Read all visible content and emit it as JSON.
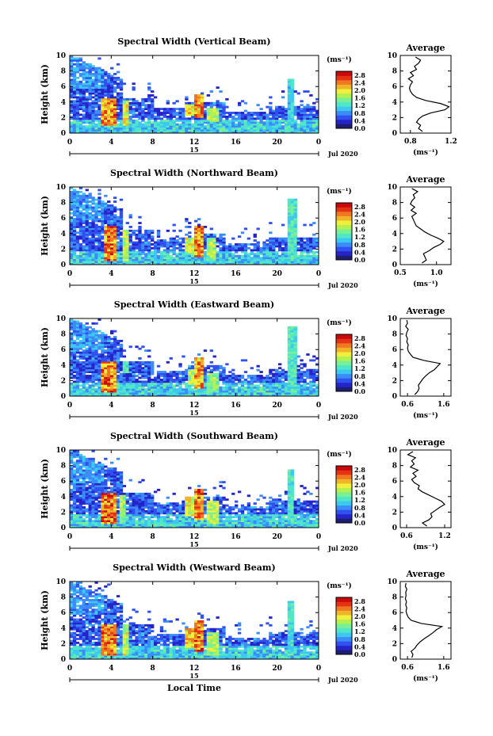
{
  "figure": {
    "x_label": "Local Time",
    "date_label": "Jul 2020",
    "day_label": "15",
    "colorbar_unit": "(ms⁻¹)",
    "colorbar_ticks": [
      "0.0",
      "0.4",
      "0.8",
      "1.2",
      "1.6",
      "2.0",
      "2.4",
      "2.8"
    ],
    "colorbar_range": [
      0,
      3.0
    ],
    "colormap": [
      "#1e1e6e",
      "#2424c8",
      "#3050f0",
      "#3c8cf8",
      "#3cc8f0",
      "#50e6c8",
      "#78f096",
      "#b4f050",
      "#f0f03c",
      "#f0b428",
      "#f07820",
      "#e63214",
      "#c80a0a"
    ]
  },
  "chart_data": [
    {
      "type": "heatmap",
      "title": "Spectral Width (Vertical Beam)",
      "ylabel": "Height (km)",
      "xlabel": "",
      "x_ticks": [
        "0",
        "4",
        "8",
        "12",
        "16",
        "20",
        "0"
      ],
      "y_ticks": [
        "0",
        "2",
        "4",
        "6",
        "8",
        "10"
      ],
      "xlim": [
        0,
        24
      ],
      "ylim": [
        0,
        10
      ],
      "high_regions": [
        {
          "t": [
            2.8,
            4.2
          ],
          "h": [
            1.0,
            4.5
          ],
          "v": 2.7
        },
        {
          "t": [
            4.8,
            5.4
          ],
          "h": [
            1.0,
            4.2
          ],
          "v": 2.1
        },
        {
          "t": [
            11.0,
            12.0
          ],
          "h": [
            2.2,
            3.6
          ],
          "v": 2.3
        },
        {
          "t": [
            12.0,
            12.8
          ],
          "h": [
            2.0,
            5.0
          ],
          "v": 2.6
        },
        {
          "t": [
            13.2,
            14.2
          ],
          "h": [
            1.5,
            3.2
          ],
          "v": 1.9
        },
        {
          "t": [
            21.0,
            21.6
          ],
          "h": [
            1.0,
            7.0
          ],
          "v": 1.3
        }
      ],
      "profile": {
        "title": "Average",
        "ylabel": "Height (km)",
        "xlabel": "(ms⁻¹)",
        "x_ticks": [
          "0.8",
          "1.2"
        ],
        "xlim": [
          0.7,
          1.2
        ],
        "x_tick_values": [
          0.8,
          1.2
        ],
        "heights": [
          0.2,
          0.6,
          1.0,
          1.4,
          1.8,
          2.2,
          2.6,
          3.0,
          3.4,
          3.8,
          4.2,
          4.6,
          5.0,
          5.4,
          5.8,
          6.2,
          6.6,
          7.0,
          7.4,
          7.8,
          8.2,
          8.6,
          9.0,
          9.4,
          9.8
        ],
        "values": [
          0.92,
          0.88,
          0.9,
          0.86,
          0.88,
          0.92,
          1.0,
          1.14,
          1.18,
          1.1,
          0.95,
          0.86,
          0.82,
          0.8,
          0.79,
          0.8,
          0.82,
          0.78,
          0.83,
          0.8,
          0.86,
          0.84,
          0.88,
          0.9,
          0.85
        ]
      }
    },
    {
      "type": "heatmap",
      "title": "Spectral Width (Northward Beam)",
      "ylabel": "Height (km)",
      "xlabel": "",
      "x_ticks": [
        "0",
        "4",
        "8",
        "12",
        "16",
        "20",
        "0"
      ],
      "y_ticks": [
        "0",
        "2",
        "4",
        "6",
        "8",
        "10"
      ],
      "xlim": [
        0,
        24
      ],
      "ylim": [
        0,
        10
      ],
      "high_regions": [
        {
          "t": [
            3.0,
            4.2
          ],
          "h": [
            0.5,
            5.0
          ],
          "v": 2.7
        },
        {
          "t": [
            4.8,
            5.6
          ],
          "h": [
            0.5,
            4.5
          ],
          "v": 2.0
        },
        {
          "t": [
            11.0,
            11.8
          ],
          "h": [
            1.5,
            3.5
          ],
          "v": 2.2
        },
        {
          "t": [
            12.0,
            12.8
          ],
          "h": [
            1.0,
            5.0
          ],
          "v": 2.7
        },
        {
          "t": [
            13.0,
            14.0
          ],
          "h": [
            0.5,
            3.5
          ],
          "v": 1.9
        },
        {
          "t": [
            21.0,
            21.8
          ],
          "h": [
            0.5,
            8.5
          ],
          "v": 1.5
        }
      ],
      "profile": {
        "title": "Average",
        "ylabel": "Height (km)",
        "xlabel": "(ms⁻¹)",
        "x_ticks": [
          "0.5",
          "1.0"
        ],
        "xlim": [
          0.5,
          1.2
        ],
        "x_tick_values": [
          0.5,
          1.0
        ],
        "heights": [
          0.2,
          0.6,
          1.0,
          1.4,
          1.8,
          2.2,
          2.6,
          3.0,
          3.4,
          3.8,
          4.2,
          4.6,
          5.0,
          5.4,
          5.8,
          6.2,
          6.6,
          7.0,
          7.4,
          7.8,
          8.2,
          8.6,
          9.0,
          9.4,
          9.8
        ],
        "values": [
          0.8,
          0.86,
          0.84,
          0.82,
          0.9,
          0.96,
          1.05,
          1.1,
          1.02,
          0.92,
          0.84,
          0.78,
          0.72,
          0.7,
          0.68,
          0.66,
          0.72,
          0.65,
          0.7,
          0.64,
          0.66,
          0.7,
          0.68,
          0.74,
          0.66
        ]
      }
    },
    {
      "type": "heatmap",
      "title": "Spectral Width (Eastward Beam)",
      "ylabel": "Height (km)",
      "xlabel": "",
      "x_ticks": [
        "0",
        "4",
        "8",
        "12",
        "16",
        "20",
        "0"
      ],
      "y_ticks": [
        "0",
        "2",
        "4",
        "6",
        "8",
        "10"
      ],
      "xlim": [
        0,
        24
      ],
      "ylim": [
        0,
        10
      ],
      "high_regions": [
        {
          "t": [
            2.8,
            4.2
          ],
          "h": [
            0.5,
            4.5
          ],
          "v": 2.7
        },
        {
          "t": [
            4.8,
            5.4
          ],
          "h": [
            3.0,
            4.5
          ],
          "v": 1.6
        },
        {
          "t": [
            11.2,
            12.0
          ],
          "h": [
            1.5,
            3.5
          ],
          "v": 2.0
        },
        {
          "t": [
            12.0,
            12.8
          ],
          "h": [
            1.0,
            5.0
          ],
          "v": 2.6
        },
        {
          "t": [
            13.2,
            14.2
          ],
          "h": [
            0.5,
            3.0
          ],
          "v": 1.8
        },
        {
          "t": [
            21.0,
            21.8
          ],
          "h": [
            0.5,
            9.0
          ],
          "v": 1.5
        }
      ],
      "profile": {
        "title": "Average",
        "ylabel": "Height (km)",
        "xlabel": "(ms⁻¹)",
        "x_ticks": [
          "0.6",
          "1.6"
        ],
        "xlim": [
          0.4,
          1.8
        ],
        "x_tick_values": [
          0.6,
          1.6
        ],
        "heights": [
          0.2,
          0.6,
          1.0,
          1.4,
          1.8,
          2.2,
          2.6,
          3.0,
          3.4,
          3.8,
          4.2,
          4.6,
          5.0,
          5.4,
          5.8,
          6.2,
          6.6,
          7.0,
          7.4,
          7.8,
          8.2,
          8.6,
          9.0,
          9.4,
          9.8
        ],
        "values": [
          0.8,
          0.88,
          0.92,
          0.9,
          0.96,
          1.02,
          1.1,
          1.2,
          1.34,
          1.42,
          1.5,
          1.05,
          0.75,
          0.68,
          0.62,
          0.6,
          0.62,
          0.58,
          0.6,
          0.56,
          0.58,
          0.62,
          0.55,
          0.6,
          0.58
        ]
      }
    },
    {
      "type": "heatmap",
      "title": "Spectral Width (Southward Beam)",
      "ylabel": "Height (km)",
      "xlabel": "",
      "x_ticks": [
        "0",
        "4",
        "8",
        "12",
        "16",
        "20",
        "0"
      ],
      "y_ticks": [
        "0",
        "2",
        "4",
        "6",
        "8",
        "10"
      ],
      "xlim": [
        0,
        24
      ],
      "ylim": [
        0,
        10
      ],
      "high_regions": [
        {
          "t": [
            2.8,
            4.4
          ],
          "h": [
            0.5,
            4.5
          ],
          "v": 2.8
        },
        {
          "t": [
            4.6,
            5.2
          ],
          "h": [
            0.5,
            4.2
          ],
          "v": 1.9
        },
        {
          "t": [
            11.0,
            11.8
          ],
          "h": [
            1.5,
            3.8
          ],
          "v": 2.2
        },
        {
          "t": [
            12.0,
            12.8
          ],
          "h": [
            1.0,
            5.0
          ],
          "v": 2.7
        },
        {
          "t": [
            13.2,
            14.2
          ],
          "h": [
            0.5,
            3.5
          ],
          "v": 2.0
        },
        {
          "t": [
            21.0,
            21.6
          ],
          "h": [
            0.5,
            7.5
          ],
          "v": 1.4
        }
      ],
      "profile": {
        "title": "Average",
        "ylabel": "Height (km)",
        "xlabel": "(ms⁻¹)",
        "x_ticks": [
          "0.6",
          "1.2"
        ],
        "xlim": [
          0.5,
          1.3
        ],
        "x_tick_values": [
          0.6,
          1.2
        ],
        "heights": [
          0.2,
          0.6,
          1.0,
          1.4,
          1.8,
          2.2,
          2.6,
          3.0,
          3.4,
          3.8,
          4.2,
          4.6,
          5.0,
          5.4,
          5.8,
          6.2,
          6.6,
          7.0,
          7.4,
          7.8,
          8.2,
          8.6,
          9.0,
          9.4,
          9.8
        ],
        "values": [
          0.92,
          0.85,
          0.95,
          1.0,
          0.98,
          1.05,
          1.12,
          1.2,
          1.15,
          1.05,
          0.95,
          0.85,
          0.78,
          0.8,
          0.72,
          0.68,
          0.75,
          0.7,
          0.78,
          0.66,
          0.72,
          0.68,
          0.74,
          0.62,
          0.7
        ]
      }
    },
    {
      "type": "heatmap",
      "title": "Spectral Width (Westward Beam)",
      "ylabel": "Height (km)",
      "xlabel": "Local Time",
      "x_ticks": [
        "0",
        "4",
        "8",
        "12",
        "16",
        "20",
        "0"
      ],
      "y_ticks": [
        "0",
        "2",
        "4",
        "6",
        "8",
        "10"
      ],
      "xlim": [
        0,
        24
      ],
      "ylim": [
        0,
        10
      ],
      "high_regions": [
        {
          "t": [
            2.8,
            4.2
          ],
          "h": [
            0.5,
            4.5
          ],
          "v": 2.7
        },
        {
          "t": [
            4.8,
            5.6
          ],
          "h": [
            0.5,
            4.5
          ],
          "v": 2.0
        },
        {
          "t": [
            11.0,
            11.8
          ],
          "h": [
            1.5,
            3.8
          ],
          "v": 2.4
        },
        {
          "t": [
            12.0,
            12.8
          ],
          "h": [
            1.0,
            5.0
          ],
          "v": 2.7
        },
        {
          "t": [
            13.2,
            14.2
          ],
          "h": [
            0.5,
            3.5
          ],
          "v": 1.9
        },
        {
          "t": [
            21.0,
            21.6
          ],
          "h": [
            0.5,
            7.5
          ],
          "v": 1.4
        }
      ],
      "profile": {
        "title": "Average",
        "ylabel": "Height (km)",
        "xlabel": "(ms⁻¹)",
        "x_ticks": [
          "0.6",
          "1.6"
        ],
        "xlim": [
          0.4,
          1.8
        ],
        "x_tick_values": [
          0.6,
          1.6
        ],
        "heights": [
          0.2,
          0.6,
          1.0,
          1.4,
          1.8,
          2.2,
          2.6,
          3.0,
          3.4,
          3.8,
          4.2,
          4.6,
          5.0,
          5.4,
          5.8,
          6.2,
          6.6,
          7.0,
          7.4,
          7.8,
          8.2,
          8.6,
          9.0,
          9.4,
          9.8
        ],
        "values": [
          0.72,
          0.75,
          0.7,
          0.8,
          0.86,
          0.94,
          1.05,
          1.18,
          1.3,
          1.4,
          1.55,
          0.98,
          0.7,
          0.62,
          0.58,
          0.56,
          0.58,
          0.55,
          0.57,
          0.54,
          0.56,
          0.55,
          0.58,
          0.54,
          0.56
        ]
      }
    }
  ]
}
